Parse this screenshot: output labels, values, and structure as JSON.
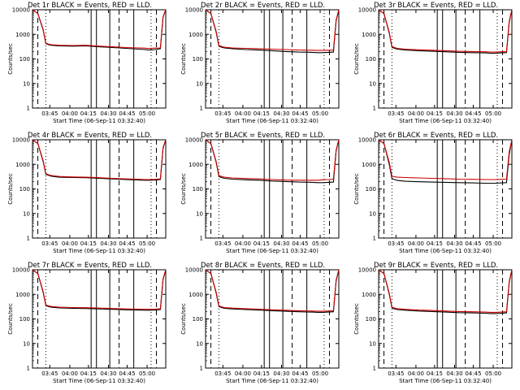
{
  "chart_data": [
    {
      "type": "line",
      "title": "Det 1r BLACK = Events, RED = LLD.",
      "xlabel": "Start Time (06-Sep-11 03:32:40)",
      "ylabel": "Counts/sec",
      "y_scale": "log",
      "ylim": [
        1,
        10000
      ],
      "xlim": [
        0,
        100
      ],
      "x_tick_labels": [
        "03:45",
        "04:00",
        "04:15",
        "04:30",
        "04:45",
        "05:00"
      ],
      "y_tick_labels": [
        "1",
        "10",
        "100",
        "1000",
        "10000"
      ],
      "series": [
        {
          "color": "#000000",
          "x": [
            0,
            4,
            8,
            10,
            12,
            14,
            20,
            30,
            40,
            50,
            60,
            70,
            80,
            84,
            86,
            88,
            92,
            96,
            98,
            100
          ],
          "values": [
            10000,
            7000,
            1500,
            420,
            380,
            360,
            340,
            330,
            340,
            310,
            290,
            270,
            250,
            240,
            235,
            230,
            240,
            260,
            5000,
            10000
          ]
        },
        {
          "color": "#cc0000",
          "x": [
            0,
            4,
            8,
            10,
            12,
            14,
            20,
            30,
            40,
            50,
            60,
            70,
            80,
            84,
            86,
            88,
            92,
            96,
            98,
            100
          ],
          "values": [
            10000,
            7000,
            1600,
            440,
            400,
            380,
            360,
            350,
            360,
            330,
            310,
            290,
            280,
            275,
            270,
            270,
            275,
            280,
            5200,
            10000
          ]
        }
      ]
    },
    {
      "type": "line",
      "title": "Det 2r BLACK = Events, RED = LLD.",
      "xlabel": "Start Time (06-Sep-11 03:32:40)",
      "ylabel": "Counts/sec",
      "y_scale": "log",
      "ylim": [
        1,
        10000
      ],
      "xlim": [
        0,
        100
      ],
      "x_tick_labels": [
        "03:45",
        "04:00",
        "04:15",
        "04:30",
        "04:45",
        "05:00"
      ],
      "y_tick_labels": [
        "1",
        "10",
        "100",
        "1000",
        "10000"
      ],
      "series": [
        {
          "color": "#000000",
          "x": [
            0,
            4,
            8,
            10,
            12,
            14,
            20,
            30,
            40,
            50,
            60,
            70,
            80,
            84,
            86,
            88,
            92,
            96,
            98,
            100
          ],
          "values": [
            10000,
            7000,
            1200,
            330,
            300,
            280,
            260,
            240,
            230,
            215,
            200,
            190,
            185,
            180,
            180,
            180,
            185,
            190,
            3500,
            10000
          ]
        },
        {
          "color": "#cc0000",
          "x": [
            0,
            4,
            8,
            10,
            12,
            14,
            20,
            30,
            40,
            50,
            60,
            70,
            80,
            84,
            86,
            88,
            92,
            96,
            98,
            100
          ],
          "values": [
            10000,
            7000,
            1300,
            350,
            320,
            300,
            280,
            270,
            260,
            250,
            240,
            230,
            225,
            220,
            220,
            220,
            225,
            230,
            3800,
            10000
          ]
        }
      ]
    },
    {
      "type": "line",
      "title": "Det 3r BLACK = Events, RED = LLD.",
      "xlabel": "Start Time (06-Sep-11 03:32:40)",
      "ylabel": "Counts/sec",
      "y_scale": "log",
      "ylim": [
        1,
        10000
      ],
      "xlim": [
        0,
        100
      ],
      "x_tick_labels": [
        "03:45",
        "04:00",
        "04:15",
        "04:30",
        "04:45",
        "05:00"
      ],
      "y_tick_labels": [
        "1",
        "10",
        "100",
        "1000",
        "10000"
      ],
      "series": [
        {
          "color": "#000000",
          "x": [
            0,
            4,
            8,
            10,
            12,
            14,
            20,
            30,
            40,
            50,
            60,
            70,
            80,
            84,
            86,
            88,
            92,
            96,
            98,
            100
          ],
          "values": [
            10000,
            7000,
            1100,
            300,
            270,
            250,
            230,
            215,
            205,
            195,
            185,
            180,
            175,
            170,
            170,
            170,
            175,
            180,
            3000,
            10000
          ]
        },
        {
          "color": "#cc0000",
          "x": [
            0,
            4,
            8,
            10,
            12,
            14,
            20,
            30,
            40,
            50,
            60,
            70,
            80,
            84,
            86,
            88,
            92,
            96,
            98,
            100
          ],
          "values": [
            10000,
            7000,
            1200,
            320,
            290,
            270,
            250,
            235,
            225,
            215,
            205,
            200,
            195,
            190,
            190,
            190,
            195,
            200,
            3300,
            10000
          ]
        }
      ]
    },
    {
      "type": "line",
      "title": "Det 4r BLACK = Events, RED = LLD.",
      "xlabel": "Start Time (06-Sep-11 03:32:40)",
      "ylabel": "Counts/sec",
      "y_scale": "log",
      "ylim": [
        1,
        10000
      ],
      "xlim": [
        0,
        100
      ],
      "x_tick_labels": [
        "03:45",
        "04:00",
        "04:15",
        "04:30",
        "04:45",
        "05:00"
      ],
      "y_tick_labels": [
        "1",
        "10",
        "100",
        "1000",
        "10000"
      ],
      "series": [
        {
          "color": "#000000",
          "x": [
            0,
            4,
            8,
            10,
            12,
            14,
            20,
            30,
            40,
            50,
            60,
            70,
            80,
            84,
            86,
            88,
            92,
            96,
            98,
            100
          ],
          "values": [
            10000,
            7000,
            1300,
            400,
            360,
            330,
            300,
            290,
            285,
            270,
            255,
            240,
            230,
            225,
            225,
            225,
            230,
            240,
            4500,
            10000
          ]
        },
        {
          "color": "#cc0000",
          "x": [
            0,
            4,
            8,
            10,
            12,
            14,
            20,
            30,
            40,
            50,
            60,
            70,
            80,
            84,
            86,
            88,
            92,
            96,
            98,
            100
          ],
          "values": [
            10000,
            7000,
            1400,
            420,
            380,
            350,
            320,
            305,
            300,
            285,
            270,
            255,
            245,
            240,
            240,
            240,
            245,
            255,
            4800,
            10000
          ]
        }
      ]
    },
    {
      "type": "line",
      "title": "Det 5r BLACK = Events, RED = LLD.",
      "xlabel": "Start Time (06-Sep-11 03:32:40)",
      "ylabel": "Counts/sec",
      "y_scale": "log",
      "ylim": [
        1,
        10000
      ],
      "xlim": [
        0,
        100
      ],
      "x_tick_labels": [
        "03:45",
        "04:00",
        "04:15",
        "04:30",
        "04:45",
        "05:00"
      ],
      "y_tick_labels": [
        "1",
        "10",
        "100",
        "1000",
        "10000"
      ],
      "series": [
        {
          "color": "#000000",
          "x": [
            0,
            4,
            8,
            10,
            12,
            14,
            20,
            30,
            40,
            50,
            60,
            70,
            80,
            84,
            86,
            88,
            92,
            96,
            98,
            100
          ],
          "values": [
            10000,
            7000,
            1200,
            320,
            290,
            270,
            250,
            235,
            225,
            210,
            200,
            190,
            185,
            180,
            180,
            180,
            185,
            190,
            3500,
            10000
          ]
        },
        {
          "color": "#cc0000",
          "x": [
            0,
            4,
            8,
            10,
            12,
            14,
            20,
            30,
            40,
            50,
            60,
            70,
            80,
            84,
            86,
            88,
            92,
            96,
            98,
            100
          ],
          "values": [
            10000,
            7000,
            1300,
            350,
            320,
            300,
            280,
            265,
            255,
            240,
            230,
            225,
            225,
            225,
            230,
            235,
            240,
            250,
            3800,
            10000
          ]
        }
      ]
    },
    {
      "type": "line",
      "title": "Det 6r BLACK = Events, RED = LLD.",
      "xlabel": "Start Time (06-Sep-11 03:32:40)",
      "ylabel": "Counts/sec",
      "y_scale": "log",
      "ylim": [
        1,
        10000
      ],
      "xlim": [
        0,
        100
      ],
      "x_tick_labels": [
        "03:45",
        "04:00",
        "04:15",
        "04:30",
        "04:45",
        "05:00"
      ],
      "y_tick_labels": [
        "1",
        "10",
        "100",
        "1000",
        "10000"
      ],
      "series": [
        {
          "color": "#000000",
          "x": [
            0,
            4,
            8,
            10,
            12,
            14,
            20,
            30,
            40,
            50,
            60,
            70,
            80,
            84,
            86,
            88,
            92,
            96,
            98,
            100
          ],
          "values": [
            10000,
            7000,
            1000,
            260,
            240,
            220,
            205,
            195,
            190,
            185,
            180,
            175,
            170,
            170,
            170,
            170,
            175,
            180,
            2500,
            10000
          ]
        },
        {
          "color": "#cc0000",
          "x": [
            0,
            4,
            8,
            10,
            12,
            14,
            20,
            30,
            40,
            50,
            60,
            70,
            80,
            84,
            86,
            88,
            92,
            96,
            98,
            100
          ],
          "values": [
            10000,
            7000,
            1200,
            330,
            310,
            300,
            290,
            280,
            270,
            260,
            250,
            245,
            240,
            240,
            240,
            240,
            245,
            250,
            3200,
            10000
          ]
        }
      ]
    },
    {
      "type": "line",
      "title": "Det 7r BLACK = Events, RED = LLD.",
      "xlabel": "Start Time (06-Sep-11 03:32:40)",
      "ylabel": "Counts/sec",
      "y_scale": "log",
      "ylim": [
        1,
        10000
      ],
      "xlim": [
        0,
        100
      ],
      "x_tick_labels": [
        "03:45",
        "04:00",
        "04:15",
        "04:30",
        "04:45",
        "05:00"
      ],
      "y_tick_labels": [
        "1",
        "10",
        "100",
        "1000",
        "10000"
      ],
      "series": [
        {
          "color": "#000000",
          "x": [
            0,
            4,
            8,
            10,
            12,
            14,
            20,
            30,
            40,
            50,
            60,
            70,
            80,
            84,
            86,
            88,
            92,
            96,
            98,
            100
          ],
          "values": [
            10000,
            7000,
            1200,
            350,
            320,
            300,
            280,
            270,
            265,
            255,
            245,
            235,
            230,
            225,
            225,
            225,
            230,
            240,
            4000,
            10000
          ]
        },
        {
          "color": "#cc0000",
          "x": [
            0,
            4,
            8,
            10,
            12,
            14,
            20,
            30,
            40,
            50,
            60,
            70,
            80,
            84,
            86,
            88,
            92,
            96,
            98,
            100
          ],
          "values": [
            10000,
            7000,
            1300,
            370,
            340,
            320,
            300,
            290,
            285,
            275,
            265,
            255,
            250,
            245,
            245,
            245,
            250,
            260,
            4300,
            10000
          ]
        }
      ]
    },
    {
      "type": "line",
      "title": "Det 8r BLACK = Events, RED = LLD.",
      "xlabel": "Start Time (06-Sep-11 03:32:40)",
      "ylabel": "Counts/sec",
      "y_scale": "log",
      "ylim": [
        1,
        10000
      ],
      "xlim": [
        0,
        100
      ],
      "x_tick_labels": [
        "03:45",
        "04:00",
        "04:15",
        "04:30",
        "04:45",
        "05:00"
      ],
      "y_tick_labels": [
        "1",
        "10",
        "100",
        "1000",
        "10000"
      ],
      "series": [
        {
          "color": "#000000",
          "x": [
            0,
            4,
            8,
            10,
            12,
            14,
            20,
            30,
            40,
            50,
            60,
            70,
            80,
            84,
            86,
            88,
            92,
            96,
            98,
            100
          ],
          "values": [
            10000,
            7000,
            1100,
            320,
            290,
            270,
            255,
            240,
            230,
            215,
            205,
            195,
            190,
            185,
            185,
            185,
            190,
            195,
            3500,
            10000
          ]
        },
        {
          "color": "#cc0000",
          "x": [
            0,
            4,
            8,
            10,
            12,
            14,
            20,
            30,
            40,
            50,
            60,
            70,
            80,
            84,
            86,
            88,
            92,
            96,
            98,
            100
          ],
          "values": [
            10000,
            7000,
            1200,
            340,
            310,
            290,
            275,
            260,
            250,
            235,
            225,
            215,
            210,
            205,
            205,
            205,
            210,
            215,
            3800,
            10000
          ]
        }
      ]
    },
    {
      "type": "line",
      "title": "Det 9r BLACK = Events, RED = LLD.",
      "xlabel": "Start Time (06-Sep-11 03:32:40)",
      "ylabel": "Counts/sec",
      "y_scale": "log",
      "ylim": [
        1,
        10000
      ],
      "xlim": [
        0,
        100
      ],
      "x_tick_labels": [
        "03:45",
        "04:00",
        "04:15",
        "04:30",
        "04:45",
        "05:00"
      ],
      "y_tick_labels": [
        "1",
        "10",
        "100",
        "1000",
        "10000"
      ],
      "series": [
        {
          "color": "#000000",
          "x": [
            0,
            4,
            8,
            10,
            12,
            14,
            20,
            30,
            40,
            50,
            60,
            70,
            80,
            84,
            86,
            88,
            92,
            96,
            98,
            100
          ],
          "values": [
            10000,
            7000,
            1000,
            280,
            255,
            240,
            225,
            210,
            200,
            190,
            180,
            175,
            170,
            165,
            165,
            165,
            170,
            175,
            3000,
            10000
          ]
        },
        {
          "color": "#cc0000",
          "x": [
            0,
            4,
            8,
            10,
            12,
            14,
            20,
            30,
            40,
            50,
            60,
            70,
            80,
            84,
            86,
            88,
            92,
            96,
            98,
            100
          ],
          "values": [
            10000,
            7000,
            1100,
            300,
            275,
            260,
            245,
            230,
            220,
            210,
            200,
            195,
            190,
            185,
            185,
            185,
            190,
            195,
            3300,
            10000
          ]
        }
      ]
    }
  ]
}
